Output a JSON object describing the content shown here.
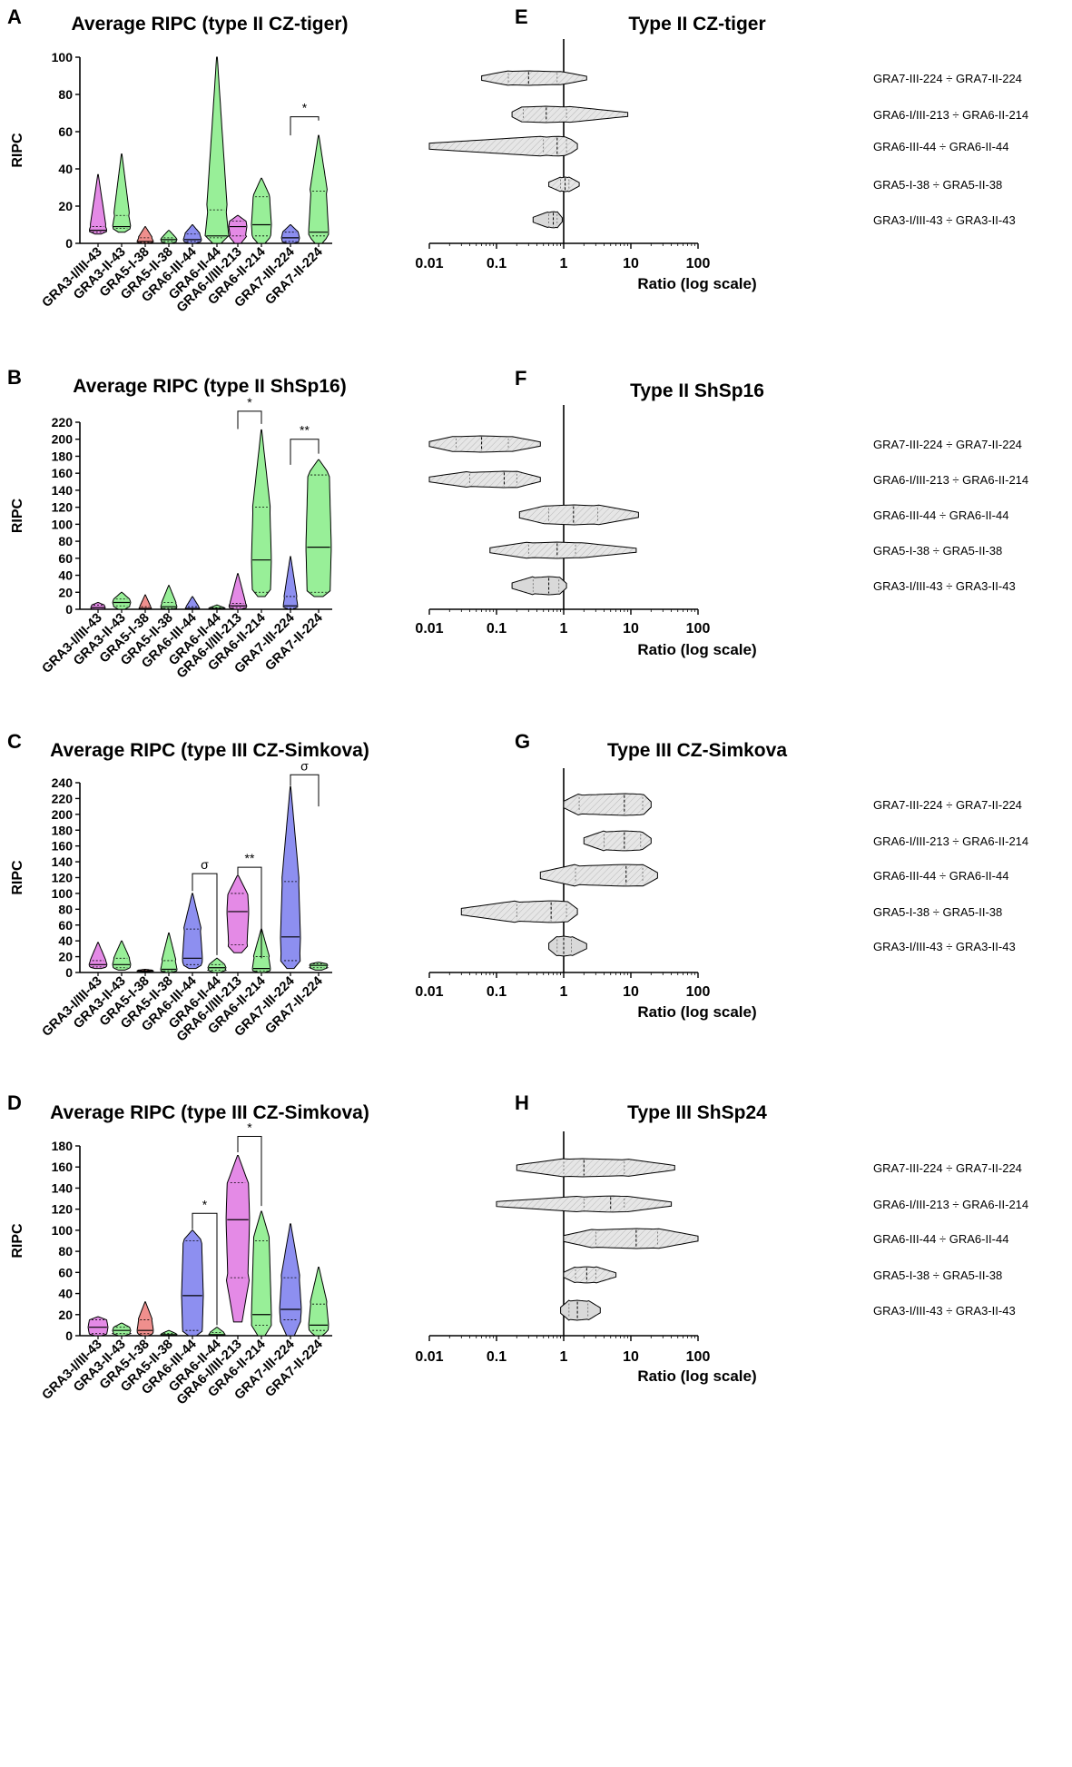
{
  "colors": {
    "GRA3": "#e48ae6",
    "GRA5": "#ef8f8d",
    "GRAII": "#98ef98",
    "GRA6": "#8d8ff0",
    "ratio_fill": "#e6e6e6"
  },
  "chart_data": [
    {
      "letter": "A",
      "type": "violin",
      "title": "Average RIPC (type II CZ-tiger)",
      "ylabel": "RIPC",
      "ylim": [
        0,
        100
      ],
      "yticks": [
        0,
        20,
        40,
        60,
        80,
        100
      ],
      "categories": [
        "GRA3-I/III-43",
        "GRA3-II-43",
        "GRA5-I-38",
        "GRA5-II-38",
        "GRA6-III-44",
        "GRA6-II-44",
        "GRA6-I/III-213",
        "GRA6-II-214",
        "GRA7-III-224",
        "GRA7-II-224"
      ],
      "colors": [
        "GRA3",
        "GRAII",
        "GRA5",
        "GRAII",
        "GRA6",
        "GRAII",
        "GRA3",
        "GRAII",
        "GRA6",
        "GRAII"
      ],
      "violins": [
        {
          "min": 5,
          "q1": 6,
          "median": 7,
          "q3": 9,
          "max": 37,
          "halfwidth": 10
        },
        {
          "min": 6,
          "q1": 8,
          "median": 9,
          "q3": 15,
          "max": 48,
          "halfwidth": 10
        },
        {
          "min": 0,
          "q1": 0.5,
          "median": 1,
          "q3": 3,
          "max": 9,
          "halfwidth": 9
        },
        {
          "min": 0,
          "q1": 1,
          "median": 2,
          "q3": 3,
          "max": 7,
          "halfwidth": 9
        },
        {
          "min": 0,
          "q1": 1,
          "median": 2,
          "q3": 5,
          "max": 10,
          "halfwidth": 10
        },
        {
          "min": 0,
          "q1": 3,
          "median": 4,
          "q3": 18,
          "max": 100,
          "halfwidth": 13
        },
        {
          "min": 0,
          "q1": 4,
          "median": 9,
          "q3": 12,
          "max": 15,
          "halfwidth": 10
        },
        {
          "min": 0,
          "q1": 4,
          "median": 10,
          "q3": 25,
          "max": 35,
          "halfwidth": 11
        },
        {
          "min": 0,
          "q1": 1,
          "median": 3,
          "q3": 6,
          "max": 10,
          "halfwidth": 10
        },
        {
          "min": 0,
          "q1": 4,
          "median": 6,
          "q3": 28,
          "max": 58,
          "halfwidth": 11
        }
      ],
      "brackets": [
        {
          "from": 8,
          "to": 9,
          "label": "*",
          "y": 68,
          "left_drop": 58,
          "right_drop": 66
        }
      ]
    },
    {
      "letter": "B",
      "type": "violin",
      "title": "Average RIPC (type II ShSp16)",
      "ylabel": "RIPC",
      "ylim": [
        0,
        220
      ],
      "yticks": [
        0,
        20,
        40,
        60,
        80,
        100,
        120,
        140,
        160,
        180,
        200,
        220
      ],
      "categories": [
        "GRA3-I/III-43",
        "GRA3-II-43",
        "GRA5-I-38",
        "GRA5-II-38",
        "GRA6-III-44",
        "GRA6-II-44",
        "GRA6-I/III-213",
        "GRA6-II-214",
        "GRA7-III-224",
        "GRA7-II-224"
      ],
      "colors": [
        "GRA3",
        "GRAII",
        "GRA5",
        "GRAII",
        "GRA6",
        "GRAII",
        "GRA3",
        "GRAII",
        "GRA6",
        "GRAII"
      ],
      "violins": [
        {
          "min": 0,
          "q1": 0,
          "median": 2,
          "q3": 5,
          "max": 8,
          "halfwidth": 8
        },
        {
          "min": 0,
          "q1": 4,
          "median": 8,
          "q3": 12,
          "max": 20,
          "halfwidth": 10
        },
        {
          "min": 0,
          "q1": 0,
          "median": 1,
          "q3": 3,
          "max": 17,
          "halfwidth": 7
        },
        {
          "min": 0,
          "q1": 1,
          "median": 3,
          "q3": 8,
          "max": 28,
          "halfwidth": 9
        },
        {
          "min": 0,
          "q1": 0,
          "median": 1,
          "q3": 3,
          "max": 15,
          "halfwidth": 8
        },
        {
          "min": 0,
          "q1": 0,
          "median": 1,
          "q3": 2,
          "max": 5,
          "halfwidth": 9
        },
        {
          "min": 0,
          "q1": 2,
          "median": 4,
          "q3": 7,
          "max": 42,
          "halfwidth": 10
        },
        {
          "min": 15,
          "q1": 20,
          "median": 58,
          "q3": 120,
          "max": 211,
          "halfwidth": 11
        },
        {
          "min": 0,
          "q1": 1,
          "median": 4,
          "q3": 15,
          "max": 62,
          "halfwidth": 8
        },
        {
          "min": 15,
          "q1": 20,
          "median": 73,
          "q3": 158,
          "max": 176,
          "halfwidth": 14
        }
      ],
      "brackets": [
        {
          "from": 6,
          "to": 7,
          "label": "*",
          "y": 233,
          "left_drop": 212,
          "right_drop": 218
        },
        {
          "from": 8,
          "to": 9,
          "label": "**",
          "y": 200,
          "left_drop": 170,
          "right_drop": 183
        }
      ]
    },
    {
      "letter": "C",
      "type": "violin",
      "title": "Average RIPC (type III CZ-Simkova)",
      "ylabel": "RIPC",
      "ylim": [
        0,
        240
      ],
      "yticks": [
        0,
        20,
        40,
        60,
        80,
        100,
        120,
        140,
        160,
        180,
        200,
        220,
        240
      ],
      "categories": [
        "GRA3-I/III-43",
        "GRA3-II-43",
        "GRA5-I-38",
        "GRA5-II-38",
        "GRA6-III-44",
        "GRA6-II-44",
        "GRA6-I/III-213",
        "GRA6-II-214",
        "GRA7-III-224",
        "GRA7-II-224"
      ],
      "colors": [
        "GRA3",
        "GRAII",
        "GRA5",
        "GRAII",
        "GRA6",
        "GRAII",
        "GRA3",
        "GRAII",
        "GRA6",
        "GRAII"
      ],
      "violins": [
        {
          "min": 5,
          "q1": 7,
          "median": 10,
          "q3": 15,
          "max": 38,
          "halfwidth": 10
        },
        {
          "min": 3,
          "q1": 6,
          "median": 10,
          "q3": 18,
          "max": 40,
          "halfwidth": 10
        },
        {
          "min": 1,
          "q1": 1.5,
          "median": 2,
          "q3": 3,
          "max": 4,
          "halfwidth": 9
        },
        {
          "min": 0,
          "q1": 2,
          "median": 4,
          "q3": 15,
          "max": 50,
          "halfwidth": 9
        },
        {
          "min": 5,
          "q1": 10,
          "median": 18,
          "q3": 55,
          "max": 100,
          "halfwidth": 11
        },
        {
          "min": 0,
          "q1": 3,
          "median": 6,
          "q3": 10,
          "max": 18,
          "halfwidth": 10
        },
        {
          "min": 25,
          "q1": 35,
          "median": 77,
          "q3": 100,
          "max": 123,
          "halfwidth": 12
        },
        {
          "min": 0,
          "q1": 2,
          "median": 5,
          "q3": 20,
          "max": 55,
          "halfwidth": 10
        },
        {
          "min": 5,
          "q1": 15,
          "median": 45,
          "q3": 115,
          "max": 235,
          "halfwidth": 11
        },
        {
          "min": 3,
          "q1": 6,
          "median": 9,
          "q3": 11,
          "max": 13,
          "halfwidth": 10
        }
      ],
      "brackets": [
        {
          "from": 4,
          "to": 5,
          "label": "σ",
          "y": 125,
          "left_drop": 103,
          "right_drop": 22
        },
        {
          "from": 6,
          "to": 7,
          "label": "**",
          "y": 133,
          "left_drop": 124,
          "right_drop": 18
        },
        {
          "from": 8,
          "to": 9,
          "label": "σ",
          "y": 250,
          "left_drop": 236,
          "right_drop": 210
        }
      ]
    },
    {
      "letter": "D",
      "type": "violin",
      "title": "Average RIPC (type III CZ-Simkova)",
      "ylabel": "RIPC",
      "ylim": [
        0,
        180
      ],
      "yticks": [
        0,
        20,
        40,
        60,
        80,
        100,
        120,
        140,
        160,
        180
      ],
      "categories": [
        "GRA3-I/III-43",
        "GRA3-II-43",
        "GRA5-I-38",
        "GRA5-II-38",
        "GRA6-III-44",
        "GRA6-II-44",
        "GRA6-I/III-213",
        "GRA6-II-214",
        "GRA7-III-224",
        "GRA7-II-224"
      ],
      "colors": [
        "GRA3",
        "GRAII",
        "GRA5",
        "GRAII",
        "GRA6",
        "GRAII",
        "GRA3",
        "GRAII",
        "GRA6",
        "GRAII"
      ],
      "violins": [
        {
          "min": 0,
          "q1": 2,
          "median": 8,
          "q3": 15,
          "max": 18,
          "halfwidth": 11
        },
        {
          "min": 0,
          "q1": 2,
          "median": 5,
          "q3": 8,
          "max": 12,
          "halfwidth": 10
        },
        {
          "min": 0,
          "q1": 2,
          "median": 5,
          "q3": 15,
          "max": 32,
          "halfwidth": 9
        },
        {
          "min": 0,
          "q1": 0,
          "median": 1,
          "q3": 2,
          "max": 5,
          "halfwidth": 9
        },
        {
          "min": 0,
          "q1": 5,
          "median": 38,
          "q3": 90,
          "max": 100,
          "halfwidth": 12
        },
        {
          "min": 0,
          "q1": 0,
          "median": 1,
          "q3": 3,
          "max": 8,
          "halfwidth": 9
        },
        {
          "min": 13,
          "q1": 55,
          "median": 110,
          "q3": 145,
          "max": 171,
          "halfwidth": 13
        },
        {
          "min": 0,
          "q1": 10,
          "median": 20,
          "q3": 90,
          "max": 118,
          "halfwidth": 11
        },
        {
          "min": 0,
          "q1": 15,
          "median": 25,
          "q3": 55,
          "max": 106,
          "halfwidth": 12
        },
        {
          "min": 0,
          "q1": 5,
          "median": 10,
          "q3": 30,
          "max": 65,
          "halfwidth": 11
        }
      ],
      "brackets": [
        {
          "from": 4,
          "to": 5,
          "label": "*",
          "y": 116,
          "left_drop": 101,
          "right_drop": 10
        },
        {
          "from": 6,
          "to": 7,
          "label": "*",
          "y": 189,
          "left_drop": 174,
          "right_drop": 123
        }
      ]
    },
    {
      "letter": "E",
      "type": "ratio-violin",
      "title": "Type II CZ-tiger",
      "xlabel": "Ratio (log scale)",
      "xticks": [
        "0.01",
        "0.1",
        "1",
        "10",
        "100"
      ],
      "rows": [
        {
          "label": "GRA7-III-224 ÷ GRA7-II-224",
          "min": 0.06,
          "q1": 0.15,
          "median": 0.3,
          "q3": 0.8,
          "max": 2.2,
          "height": 8
        },
        {
          "label": "GRA6-I/III-213 ÷ GRA6-II-214",
          "min": 0.17,
          "q1": 0.25,
          "median": 0.55,
          "q3": 1.1,
          "max": 9,
          "height": 9
        },
        {
          "label": "GRA6-III-44 ÷ GRA6-II-44",
          "min": 0.01,
          "q1": 0.5,
          "median": 0.8,
          "q3": 1.1,
          "max": 1.6,
          "height": 11
        },
        {
          "label": "GRA5-I-38 ÷ GRA5-II-38",
          "min": 0.6,
          "q1": 0.9,
          "median": 1.05,
          "q3": 1.2,
          "max": 1.7,
          "height": 8
        },
        {
          "label": "GRA3-I/III-43 ÷ GRA3-II-43",
          "min": 0.35,
          "q1": 0.6,
          "median": 0.7,
          "q3": 0.8,
          "max": 0.95,
          "height": 9
        }
      ]
    },
    {
      "letter": "F",
      "type": "ratio-violin",
      "title": "Type II ShSp16",
      "xlabel": "Ratio (log scale)",
      "xticks": [
        "0.01",
        "0.1",
        "1",
        "10",
        "100"
      ],
      "rows": [
        {
          "label": "GRA7-III-224 ÷ GRA7-II-224",
          "min": 0.01,
          "q1": 0.025,
          "median": 0.06,
          "q3": 0.15,
          "max": 0.45,
          "height": 9
        },
        {
          "label": "GRA6-I/III-213 ÷ GRA6-II-214",
          "min": 0.01,
          "q1": 0.04,
          "median": 0.13,
          "q3": 0.2,
          "max": 0.45,
          "height": 9
        },
        {
          "label": "GRA6-III-44 ÷ GRA6-II-44",
          "min": 0.22,
          "q1": 0.6,
          "median": 1.4,
          "q3": 3.2,
          "max": 13,
          "height": 11
        },
        {
          "label": "GRA5-I-38 ÷ GRA5-II-38",
          "min": 0.08,
          "q1": 0.3,
          "median": 0.8,
          "q3": 1.5,
          "max": 12,
          "height": 9
        },
        {
          "label": "GRA3-I/III-43 ÷ GRA3-II-43",
          "min": 0.17,
          "q1": 0.35,
          "median": 0.6,
          "q3": 0.85,
          "max": 1.1,
          "height": 10
        }
      ]
    },
    {
      "letter": "G",
      "type": "ratio-violin",
      "title": "Type III CZ-Simkova",
      "xlabel": "Ratio (log scale)",
      "xticks": [
        "0.01",
        "0.1",
        "1",
        "10",
        "100"
      ],
      "rows": [
        {
          "label": "GRA7-III-224 ÷ GRA7-II-224",
          "min": 1,
          "q1": 1.7,
          "median": 8,
          "q3": 15,
          "max": 20,
          "height": 12
        },
        {
          "label": "GRA6-I/III-213 ÷ GRA6-II-214",
          "min": 2,
          "q1": 4,
          "median": 8,
          "q3": 14,
          "max": 20,
          "height": 11
        },
        {
          "label": "GRA6-III-44 ÷ GRA6-II-44",
          "min": 0.45,
          "q1": 1.5,
          "median": 8.5,
          "q3": 15,
          "max": 25,
          "height": 12
        },
        {
          "label": "GRA5-I-38 ÷ GRA5-II-38",
          "min": 0.03,
          "q1": 0.2,
          "median": 0.65,
          "q3": 1.1,
          "max": 1.6,
          "height": 12
        },
        {
          "label": "GRA3-I/III-43 ÷ GRA3-II-43",
          "min": 0.6,
          "q1": 0.8,
          "median": 1.0,
          "q3": 1.3,
          "max": 2.2,
          "height": 11
        }
      ]
    },
    {
      "letter": "H",
      "type": "ratio-violin",
      "title": "Type III ShSp24",
      "xlabel": "Ratio (log scale)",
      "xticks": [
        "0.01",
        "0.1",
        "1",
        "10",
        "100"
      ],
      "rows": [
        {
          "label": "GRA7-III-224 ÷ GRA7-II-224",
          "min": 0.2,
          "q1": 1,
          "median": 2,
          "q3": 8,
          "max": 45,
          "height": 10
        },
        {
          "label": "GRA6-I/III-213 ÷ GRA6-II-214",
          "min": 0.1,
          "q1": 2,
          "median": 5,
          "q3": 8,
          "max": 40,
          "height": 9
        },
        {
          "label": "GRA6-III-44 ÷ GRA6-II-44",
          "min": 1,
          "q1": 3,
          "median": 12,
          "q3": 25,
          "max": 100,
          "height": 11
        },
        {
          "label": "GRA5-I-38 ÷ GRA5-II-38",
          "min": 1,
          "q1": 1.5,
          "median": 2.2,
          "q3": 3,
          "max": 6,
          "height": 9
        },
        {
          "label": "GRA3-I/III-43 ÷ GRA3-II-43",
          "min": 0.9,
          "q1": 1.2,
          "median": 1.6,
          "q3": 2.3,
          "max": 3.5,
          "height": 11
        }
      ]
    }
  ]
}
